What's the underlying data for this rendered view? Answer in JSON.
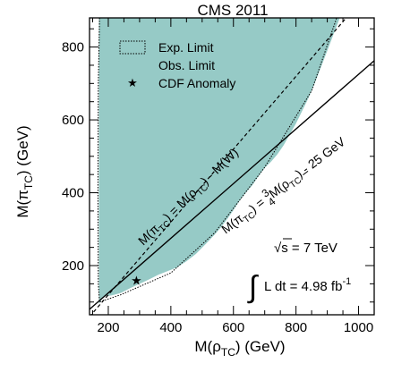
{
  "chart_data": {
    "type": "area",
    "title": "CMS 2011",
    "xlabel": {
      "main": "M(ρ",
      "sub": "TC",
      "tail": ") (GeV)"
    },
    "ylabel": {
      "main": "M(π",
      "sub": "TC",
      "tail": ") (GeV)"
    },
    "xlim": [
      140,
      1050
    ],
    "ylim": [
      65,
      880
    ],
    "x_ticks": [
      200,
      400,
      600,
      800,
      1000
    ],
    "y_ticks": [
      200,
      400,
      600,
      800
    ],
    "x_minor_step": 50,
    "y_minor_step": 50,
    "grid": false,
    "legend_position": "top-left",
    "colors": {
      "observed_fill": "#96cac6",
      "lines": "#000000"
    },
    "series": [
      {
        "name": "Obs. Limit",
        "style": "filled-region",
        "boundary": [
          [
            170,
            95
          ],
          [
            185,
            115
          ],
          [
            210,
            118
          ],
          [
            240,
            125
          ],
          [
            270,
            138
          ],
          [
            300,
            150
          ],
          [
            330,
            162
          ],
          [
            360,
            175
          ],
          [
            390,
            185
          ],
          [
            420,
            195
          ],
          [
            450,
            212
          ],
          [
            480,
            232
          ],
          [
            510,
            258
          ],
          [
            540,
            285
          ],
          [
            560,
            305
          ],
          [
            580,
            328
          ],
          [
            600,
            352
          ],
          [
            620,
            378
          ],
          [
            640,
            400
          ],
          [
            660,
            420
          ],
          [
            680,
            445
          ],
          [
            700,
            468
          ],
          [
            720,
            485
          ],
          [
            740,
            505
          ],
          [
            760,
            530
          ],
          [
            780,
            560
          ],
          [
            800,
            590
          ],
          [
            820,
            625
          ],
          [
            840,
            660
          ],
          [
            860,
            700
          ],
          [
            880,
            745
          ],
          [
            900,
            790
          ],
          [
            920,
            835
          ],
          [
            940,
            880
          ],
          [
            170,
            880
          ]
        ]
      },
      {
        "name": "Exp. Limit",
        "style": "dotted-outline",
        "boundary": [
          [
            172,
            880
          ],
          [
            168,
            700
          ],
          [
            167,
            400
          ],
          [
            168,
            150
          ],
          [
            172,
            100
          ],
          [
            240,
            120
          ],
          [
            400,
            180
          ],
          [
            540,
            290
          ],
          [
            700,
            470
          ],
          [
            850,
            680
          ],
          [
            930,
            880
          ]
        ]
      },
      {
        "name": "CDF Anomaly",
        "style": "marker",
        "points": [
          [
            290,
            160
          ]
        ]
      }
    ],
    "reference_lines": [
      {
        "label_main": "M(π",
        "label_sub": "TC",
        "label_mid": ") = M(ρ",
        "label_tail": ") - M(W)",
        "style": "dashed",
        "slope": 1,
        "intercept": -80.4,
        "label_at_x": 360,
        "label_angle": 44
      },
      {
        "label_main": "M(π",
        "label_sub": "TC",
        "label_mid": ") = ",
        "label_frac_num": "3",
        "label_frac_den": "4",
        "label_mid2": "M(ρ",
        "label_tail": ") - 25 GeV",
        "style": "solid",
        "slope": 0.75,
        "intercept": -25,
        "label_at_x": 670,
        "label_angle": 37
      }
    ],
    "legend": [
      {
        "label": "Exp. Limit",
        "symbol": "dotted-box"
      },
      {
        "label": "Obs. Limit",
        "symbol": "filled-box"
      },
      {
        "label": "CDF Anomaly",
        "symbol": "star"
      }
    ],
    "annotations": {
      "sqrt_s": {
        "sqrt_symbol": "√",
        "var": "s",
        "rest": " = 7 TeV"
      },
      "lumi": {
        "integral": "∫",
        "text": "L dt = 4.98 fb",
        "sup": "-1"
      }
    }
  }
}
